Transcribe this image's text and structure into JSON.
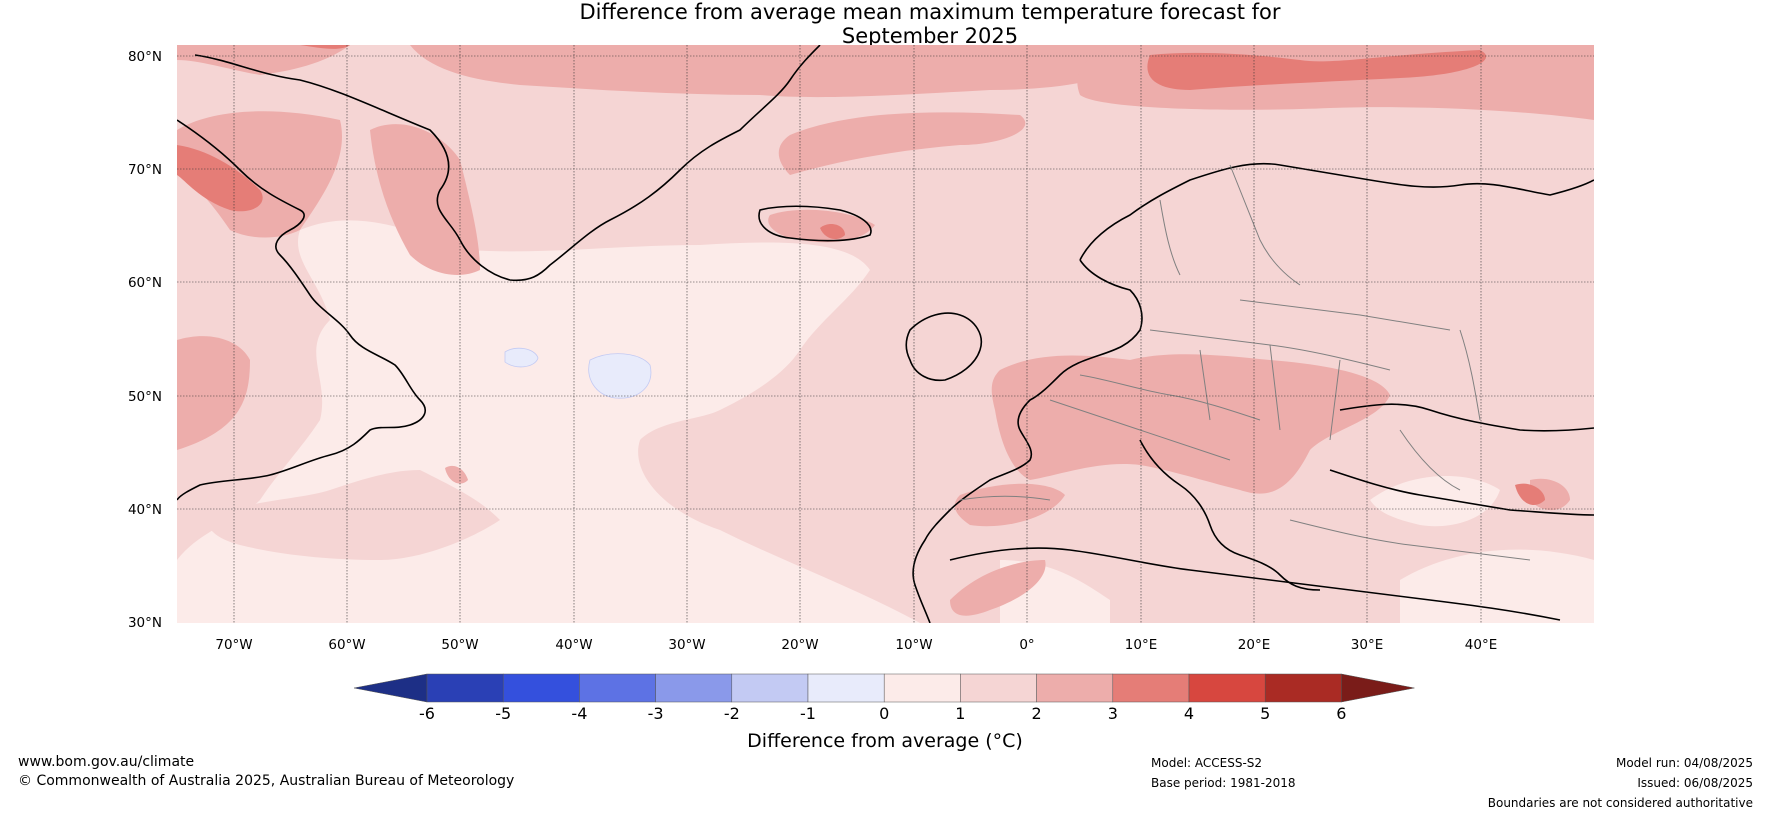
{
  "title": {
    "line1": "Difference from average mean maximum temperature forecast for",
    "line2": "September 2025"
  },
  "map": {
    "lat_labels": [
      "80°N",
      "70°N",
      "60°N",
      "50°N",
      "40°N",
      "30°N"
    ],
    "lon_labels": [
      "70°W",
      "60°W",
      "50°W",
      "40°W",
      "30°W",
      "20°W",
      "10°W",
      "0°",
      "10°E",
      "20°E",
      "30°E",
      "40°E"
    ],
    "lat_range": [
      30,
      81
    ],
    "lon_range": [
      -75,
      50
    ],
    "gridlines": true
  },
  "colorbar": {
    "title": "Difference from average (°C)",
    "ticks": [
      "-6",
      "-5",
      "-4",
      "-3",
      "-2",
      "-1",
      "0",
      "1",
      "2",
      "3",
      "4",
      "5",
      "6"
    ],
    "colors": [
      "#1d2f86",
      "#2a40b5",
      "#3450dd",
      "#5d72e4",
      "#8a99ea",
      "#c3caf3",
      "#e8ebfb",
      "#fcebe9",
      "#f5d5d4",
      "#edadab",
      "#e57d77",
      "#d7473f",
      "#aa2b24",
      "#7a1c19"
    ],
    "extend": "both"
  },
  "footer": {
    "website": "www.bom.gov.au/climate",
    "copyright": "© Commonwealth of Australia 2025, Australian Bureau of Meteorology",
    "model": "Model: ACCESS-S2",
    "base_period": "Base period: 1981-2018",
    "model_run": "Model run: 04/08/2025",
    "issued": "Issued: 06/08/2025",
    "disclaimer": "Boundaries are not considered authoritative"
  }
}
